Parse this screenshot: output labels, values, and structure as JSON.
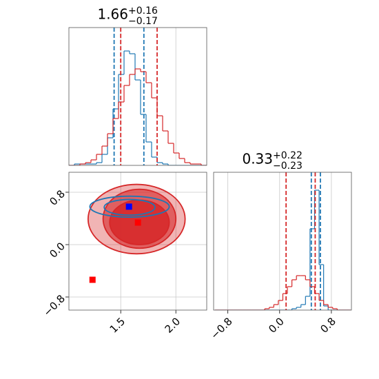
{
  "chart_data": [
    {
      "type": "histogram",
      "title": "1.66",
      "title_plus": "+0.16",
      "title_minus": "−0.17",
      "bins": [
        1.03,
        1.08,
        1.13,
        1.18,
        1.23,
        1.28,
        1.33,
        1.38,
        1.43,
        1.48,
        1.53,
        1.58,
        1.63,
        1.68,
        1.73,
        1.78,
        1.83,
        1.88,
        1.93,
        1.98,
        2.03,
        2.08,
        2.13,
        2.18,
        2.23,
        2.28
      ],
      "series": [
        {
          "color": "#1f77b4",
          "values": [
            0,
            1,
            1,
            1,
            1,
            2,
            8,
            20,
            41,
            66,
            83,
            81,
            62,
            37,
            17,
            6,
            2,
            1,
            0,
            0,
            0,
            0,
            0,
            0,
            0
          ],
          "quantiles": [
            1.44,
            1.71
          ]
        },
        {
          "color": "#d62728",
          "values": [
            0,
            0,
            1,
            2,
            4,
            8,
            14,
            23,
            34,
            46,
            58,
            66,
            70,
            68,
            60,
            49,
            36,
            25,
            16,
            9,
            5,
            2,
            1,
            1,
            0
          ],
          "quantiles": [
            1.5,
            1.83
          ]
        }
      ],
      "xlim": [
        1.03,
        2.28
      ],
      "ylim": [
        0,
        100
      ],
      "xticks": [
        1.5,
        2
      ],
      "grid": true
    },
    {
      "type": "contour",
      "series": [
        {
          "color": "#d62728",
          "filled": true,
          "levels": [
            {
              "center": [
                1.644,
                0.39
              ],
              "radius": [
                0.44,
                0.53
              ]
            },
            {
              "center": [
                1.67,
                0.395
              ],
              "radius": [
                0.33,
                0.45
              ]
            },
            {
              "center": [
                1.67,
                0.34
              ],
              "radius": [
                0.27,
                0.34
              ]
            }
          ]
        },
        {
          "color": "#1f77b4",
          "filled": false,
          "levels": [
            {
              "center": [
                1.58,
                0.58
              ],
              "radius": [
                0.36,
                0.16
              ]
            },
            {
              "center": [
                1.58,
                0.57
              ],
              "radius": [
                0.23,
                0.12
              ]
            }
          ]
        }
      ],
      "points": [
        {
          "x": 1.575,
          "y": 0.58,
          "color": "#0000ff"
        },
        {
          "x": 1.656,
          "y": 0.337,
          "color": "#ff0000"
        },
        {
          "x": 1.244,
          "y": -0.537,
          "color": "#ff0000"
        }
      ],
      "xlim": [
        1.03,
        2.28
      ],
      "ylim": [
        -1.0,
        1.105
      ],
      "xticks": [
        1.5,
        {
          "value": 2,
          "label": "2.0"
        }
      ],
      "yticks": [
        {
          "value": -0.8,
          "label": "−0.8"
        },
        {
          "value": 0,
          "label": "0.0"
        },
        0.8
      ],
      "grid": true
    },
    {
      "type": "histogram",
      "title": "0.33",
      "title_plus": "+0.22",
      "title_minus": "−0.23",
      "bins": [
        -1.0,
        -0.93,
        -0.86,
        -0.79,
        -0.72,
        -0.65,
        -0.58,
        -0.51,
        -0.44,
        -0.37,
        -0.3,
        -0.23,
        -0.16,
        -0.09,
        -0.02,
        0.05,
        0.12,
        0.19,
        0.26,
        0.33,
        0.4,
        0.47,
        0.54,
        0.61,
        0.68,
        0.75,
        0.82,
        0.89,
        0.96,
        1.03,
        1.1
      ],
      "series": [
        {
          "color": "#1f77b4",
          "values": [
            0,
            0,
            0,
            0,
            0,
            0,
            0,
            0,
            0,
            0,
            0,
            0,
            0,
            0,
            0,
            0,
            0,
            1,
            2,
            4,
            10,
            59,
            87,
            33,
            3,
            0,
            0,
            0,
            0,
            0
          ],
          "quantiles": [
            0.49,
            0.63
          ]
        },
        {
          "color": "#d62728",
          "values": [
            0,
            0,
            0,
            0,
            0,
            0,
            0,
            0,
            0,
            0,
            0,
            1,
            2,
            4,
            7,
            12,
            17,
            22,
            25,
            25,
            22,
            17,
            12,
            7,
            4,
            2,
            1,
            0,
            0,
            0
          ],
          "quantiles": [
            0.1,
            0.55
          ]
        }
      ],
      "xlim": [
        -1.02,
        1.11
      ],
      "ylim": [
        0,
        100
      ],
      "xticks": [
        {
          "value": -0.8,
          "label": "−0.8"
        },
        {
          "value": 0,
          "label": "0.0"
        },
        0.8
      ],
      "grid": true
    }
  ]
}
